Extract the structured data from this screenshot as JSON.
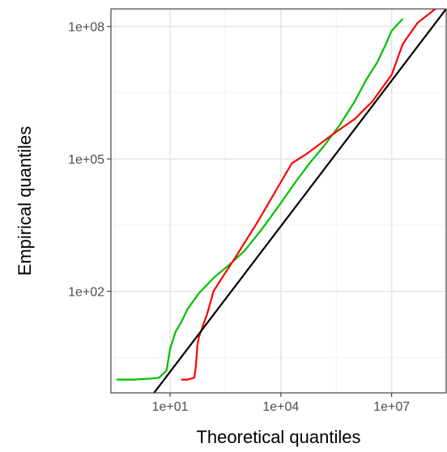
{
  "chart_data": {
    "type": "line",
    "title": "",
    "xlabel": "Theoretical quantiles",
    "ylabel": "Empirical quantiles",
    "x_scale": "log10",
    "y_scale": "log10",
    "xlim": [
      0.25,
      300000000
    ],
    "ylim": [
      0.5,
      250000000
    ],
    "grid": true,
    "legend": "none",
    "x_ticks": [
      {
        "value": 10,
        "label": "1e+01"
      },
      {
        "value": 10000,
        "label": "1e+04"
      },
      {
        "value": 10000000,
        "label": "1e+07"
      }
    ],
    "y_ticks": [
      {
        "value": 100,
        "label": "1e+02"
      },
      {
        "value": 100000,
        "label": "1e+05"
      },
      {
        "value": 100000000,
        "label": "1e+08"
      }
    ],
    "series": [
      {
        "color": "#00bf00",
        "x": [
          0.35,
          1,
          3,
          5,
          8,
          10,
          14,
          20,
          30,
          60,
          150,
          400,
          1000,
          3000,
          10000,
          25000,
          60000,
          150000,
          400000,
          1000000,
          2000000,
          4000000,
          7000000,
          10000000,
          20000000
        ],
        "y": [
          1,
          1,
          1.05,
          1.1,
          1.6,
          5,
          12,
          20,
          40,
          90,
          200,
          400,
          800,
          2500,
          10000,
          30000,
          80000,
          200000,
          600000,
          2000000,
          6000000,
          15000000,
          40000000,
          80000000,
          150000000
        ]
      },
      {
        "color": "#ff0000",
        "x": [
          20,
          30,
          45,
          50,
          55,
          60,
          80,
          100,
          150,
          300,
          600,
          1000,
          2000,
          4000,
          10000,
          20000,
          50000,
          100000,
          300000,
          1000000,
          3000000,
          10000000,
          20000000,
          50000000,
          200000000
        ],
        "y": [
          1,
          1,
          1.1,
          2,
          6,
          9,
          18,
          30,
          100,
          250,
          600,
          1200,
          3000,
          8000,
          30000,
          80000,
          130000,
          200000,
          400000,
          800000,
          2000000,
          8000000,
          40000000,
          120000000,
          300000000
        ]
      },
      {
        "color": "#000000",
        "x": [
          3,
          300000000
        ],
        "y": [
          0.4,
          250000000
        ]
      }
    ]
  }
}
